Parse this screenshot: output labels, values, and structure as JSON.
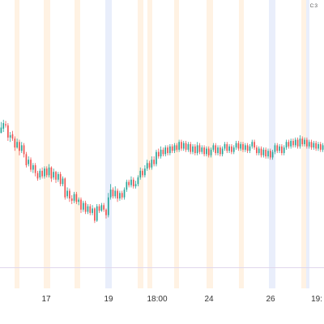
{
  "top_right_indicator": "C:3",
  "colors": {
    "up": "#26a69a",
    "down": "#ef5350",
    "band_orange": "#fff2e3",
    "band_blue": "#e9eefb",
    "axis_line": "#e0d6ec",
    "background": "#ffffff"
  },
  "chart_data": {
    "type": "candlestick",
    "x_tick_labels": [
      "17",
      "19",
      "18:00",
      "24",
      "26",
      "19:"
    ],
    "grid": false,
    "legend": "none",
    "session_bands": [
      {
        "color": "orange"
      },
      {
        "color": "orange"
      },
      {
        "color": "orange"
      },
      {
        "color": "blue"
      },
      {
        "color": "orange"
      },
      {
        "color": "orange"
      },
      {
        "color": "orange"
      },
      {
        "color": "orange"
      },
      {
        "color": "orange"
      },
      {
        "color": "blue"
      },
      {
        "color": "orange"
      },
      {
        "color": "blue"
      }
    ],
    "candles": [
      [
        88.0,
        88.5,
        89.0,
        88.0
      ],
      [
        88.4,
        88.9,
        89.2,
        88.1
      ],
      [
        88.8,
        88.7,
        89.1,
        88.5
      ],
      [
        88.7,
        87.6,
        88.9,
        87.3
      ],
      [
        87.6,
        87.8,
        88.1,
        87.2
      ],
      [
        87.9,
        87.5,
        88.2,
        87.3
      ],
      [
        87.5,
        86.7,
        87.7,
        86.4
      ],
      [
        86.7,
        87.2,
        87.5,
        86.6
      ],
      [
        87.2,
        86.4,
        87.4,
        86.0
      ],
      [
        86.4,
        86.9,
        87.2,
        86.2
      ],
      [
        86.9,
        86.1,
        87.1,
        85.8
      ],
      [
        86.1,
        85.1,
        86.3,
        84.9
      ],
      [
        85.2,
        85.6,
        85.9,
        85.0
      ],
      [
        85.6,
        84.7,
        85.8,
        84.5
      ],
      [
        84.7,
        85.1,
        85.3,
        84.4
      ],
      [
        85.1,
        84.4,
        85.3,
        84.1
      ],
      [
        84.4,
        83.9,
        84.6,
        83.7
      ],
      [
        84.0,
        84.6,
        84.8,
        83.8
      ],
      [
        84.6,
        84.1,
        84.9,
        83.9
      ],
      [
        84.1,
        84.8,
        85.0,
        83.9
      ],
      [
        84.8,
        84.2,
        85.0,
        84.0
      ],
      [
        84.2,
        84.9,
        85.2,
        84.0
      ],
      [
        84.9,
        83.9,
        85.0,
        83.6
      ],
      [
        84.0,
        84.5,
        84.8,
        83.8
      ],
      [
        84.5,
        83.8,
        84.6,
        83.5
      ],
      [
        83.8,
        84.3,
        84.5,
        83.6
      ],
      [
        84.3,
        83.4,
        84.5,
        83.2
      ],
      [
        83.4,
        83.9,
        84.1,
        83.2
      ],
      [
        83.9,
        82.2,
        84.0,
        82.0
      ],
      [
        82.3,
        82.8,
        83.1,
        82.1
      ],
      [
        82.8,
        82.1,
        83.0,
        81.8
      ],
      [
        82.1,
        81.9,
        82.4,
        81.6
      ],
      [
        81.9,
        82.5,
        82.7,
        81.7
      ],
      [
        82.5,
        81.8,
        82.7,
        81.6
      ],
      [
        81.8,
        82.0,
        82.2,
        81.5
      ],
      [
        82.0,
        81.1,
        82.2,
        80.8
      ],
      [
        81.1,
        81.7,
        81.9,
        80.9
      ],
      [
        81.7,
        80.9,
        81.9,
        80.7
      ],
      [
        80.9,
        81.4,
        81.6,
        80.7
      ],
      [
        81.4,
        80.8,
        81.6,
        80.6
      ],
      [
        80.8,
        81.2,
        81.5,
        80.6
      ],
      [
        81.2,
        80.1,
        81.3,
        79.9
      ],
      [
        80.1,
        81.4,
        81.6,
        80.0
      ],
      [
        81.4,
        81.0,
        81.6,
        80.8
      ],
      [
        81.0,
        81.5,
        81.7,
        80.9
      ],
      [
        81.5,
        81.1,
        81.7,
        80.9
      ],
      [
        81.1,
        80.6,
        81.2,
        80.3
      ],
      [
        80.6,
        82.2,
        82.6,
        80.4
      ],
      [
        82.2,
        82.9,
        83.4,
        82.0
      ],
      [
        82.9,
        82.3,
        83.1,
        82.1
      ],
      [
        82.3,
        82.8,
        83.2,
        82.1
      ],
      [
        82.8,
        82.1,
        83.0,
        81.8
      ],
      [
        82.1,
        82.6,
        82.8,
        81.9
      ],
      [
        82.6,
        82.2,
        82.8,
        82.0
      ],
      [
        82.2,
        82.9,
        83.1,
        82.0
      ],
      [
        82.9,
        83.6,
        83.8,
        82.7
      ],
      [
        83.6,
        83.3,
        83.8,
        83.1
      ],
      [
        83.3,
        83.8,
        84.1,
        83.1
      ],
      [
        83.8,
        83.2,
        84.0,
        83.0
      ],
      [
        83.2,
        83.4,
        83.7,
        83.0
      ],
      [
        83.4,
        84.0,
        84.2,
        83.2
      ],
      [
        84.0,
        84.6,
        84.9,
        83.8
      ],
      [
        84.6,
        84.2,
        84.8,
        84.0
      ],
      [
        84.2,
        84.8,
        85.1,
        84.0
      ],
      [
        84.8,
        85.3,
        85.6,
        84.6
      ],
      [
        85.3,
        84.9,
        85.5,
        84.7
      ],
      [
        84.9,
        85.6,
        85.9,
        84.7
      ],
      [
        85.6,
        85.2,
        85.9,
        85.0
      ],
      [
        85.2,
        86.3,
        86.5,
        85.0
      ],
      [
        86.3,
        85.9,
        86.6,
        85.7
      ],
      [
        85.9,
        86.5,
        86.8,
        85.7
      ],
      [
        86.5,
        86.1,
        86.7,
        85.9
      ],
      [
        86.1,
        86.7,
        86.9,
        85.9
      ],
      [
        86.7,
        86.2,
        86.9,
        86.0
      ],
      [
        86.2,
        86.8,
        87.0,
        86.0
      ],
      [
        86.8,
        86.4,
        87.0,
        86.2
      ],
      [
        86.4,
        86.9,
        87.1,
        86.2
      ],
      [
        86.9,
        86.5,
        87.1,
        86.3
      ],
      [
        86.5,
        87.2,
        87.4,
        86.3
      ],
      [
        87.2,
        86.6,
        87.4,
        86.4
      ],
      [
        86.6,
        87.1,
        87.3,
        86.4
      ],
      [
        87.1,
        86.5,
        87.3,
        86.3
      ],
      [
        86.5,
        87.0,
        87.2,
        86.3
      ],
      [
        87.0,
        86.3,
        87.2,
        86.1
      ],
      [
        86.3,
        86.8,
        87.0,
        86.1
      ],
      [
        86.8,
        86.2,
        87.0,
        86.0
      ],
      [
        86.2,
        86.9,
        87.2,
        86.0
      ],
      [
        86.9,
        86.3,
        87.1,
        86.1
      ],
      [
        86.3,
        86.7,
        86.9,
        86.1
      ],
      [
        86.7,
        86.1,
        86.9,
        85.9
      ],
      [
        86.1,
        86.6,
        86.8,
        85.9
      ],
      [
        86.6,
        86.0,
        86.8,
        85.8
      ],
      [
        86.0,
        86.5,
        86.7,
        85.8
      ],
      [
        86.5,
        86.9,
        87.1,
        86.3
      ],
      [
        86.9,
        86.2,
        87.1,
        86.0
      ],
      [
        86.2,
        86.7,
        86.9,
        86.0
      ],
      [
        86.7,
        86.1,
        86.9,
        85.9
      ],
      [
        86.1,
        86.6,
        86.8,
        85.9
      ],
      [
        86.6,
        87.0,
        87.2,
        86.4
      ],
      [
        87.0,
        86.4,
        87.2,
        86.2
      ],
      [
        86.4,
        86.8,
        87.0,
        86.2
      ],
      [
        86.8,
        86.3,
        87.0,
        86.1
      ],
      [
        86.3,
        86.7,
        86.9,
        86.1
      ],
      [
        86.7,
        87.1,
        87.3,
        86.5
      ],
      [
        87.1,
        86.6,
        87.3,
        86.4
      ],
      [
        86.6,
        87.0,
        87.2,
        86.4
      ],
      [
        87.0,
        86.5,
        87.2,
        86.3
      ],
      [
        86.5,
        86.9,
        87.1,
        86.3
      ],
      [
        86.9,
        86.4,
        87.1,
        86.2
      ],
      [
        86.4,
        86.8,
        87.0,
        86.2
      ],
      [
        86.8,
        87.2,
        87.4,
        86.6
      ],
      [
        87.2,
        86.7,
        87.4,
        86.5
      ],
      [
        86.7,
        86.2,
        86.9,
        86.0
      ],
      [
        86.2,
        86.6,
        86.8,
        86.0
      ],
      [
        86.6,
        86.0,
        86.8,
        85.8
      ],
      [
        86.0,
        86.5,
        86.7,
        85.8
      ],
      [
        86.5,
        85.9,
        86.7,
        85.7
      ],
      [
        85.9,
        86.4,
        86.6,
        85.7
      ],
      [
        86.4,
        85.8,
        86.6,
        85.6
      ],
      [
        85.8,
        86.3,
        86.5,
        85.6
      ],
      [
        86.3,
        86.9,
        87.1,
        86.1
      ],
      [
        86.9,
        86.4,
        87.1,
        86.2
      ],
      [
        86.4,
        86.8,
        87.0,
        86.2
      ],
      [
        86.8,
        86.2,
        87.0,
        86.0
      ],
      [
        86.2,
        86.7,
        86.9,
        86.0
      ],
      [
        86.7,
        87.2,
        87.4,
        86.5
      ],
      [
        87.2,
        86.8,
        87.4,
        86.6
      ],
      [
        86.8,
        87.3,
        87.5,
        86.6
      ],
      [
        87.3,
        86.9,
        87.5,
        86.7
      ],
      [
        86.9,
        87.4,
        87.6,
        86.7
      ],
      [
        87.4,
        86.8,
        87.6,
        86.6
      ],
      [
        86.8,
        87.5,
        87.8,
        86.6
      ],
      [
        87.5,
        87.0,
        87.7,
        86.8
      ],
      [
        87.0,
        87.4,
        87.6,
        86.8
      ],
      [
        87.4,
        86.8,
        87.6,
        86.6
      ],
      [
        86.8,
        87.2,
        87.4,
        86.6
      ],
      [
        87.2,
        86.7,
        87.4,
        86.5
      ],
      [
        86.7,
        87.1,
        87.3,
        86.5
      ],
      [
        87.1,
        86.6,
        87.3,
        86.4
      ],
      [
        86.6,
        87.0,
        87.2,
        86.4
      ],
      [
        87.0,
        86.5,
        87.2,
        86.3
      ],
      [
        86.5,
        86.9,
        87.1,
        86.3
      ]
    ]
  }
}
